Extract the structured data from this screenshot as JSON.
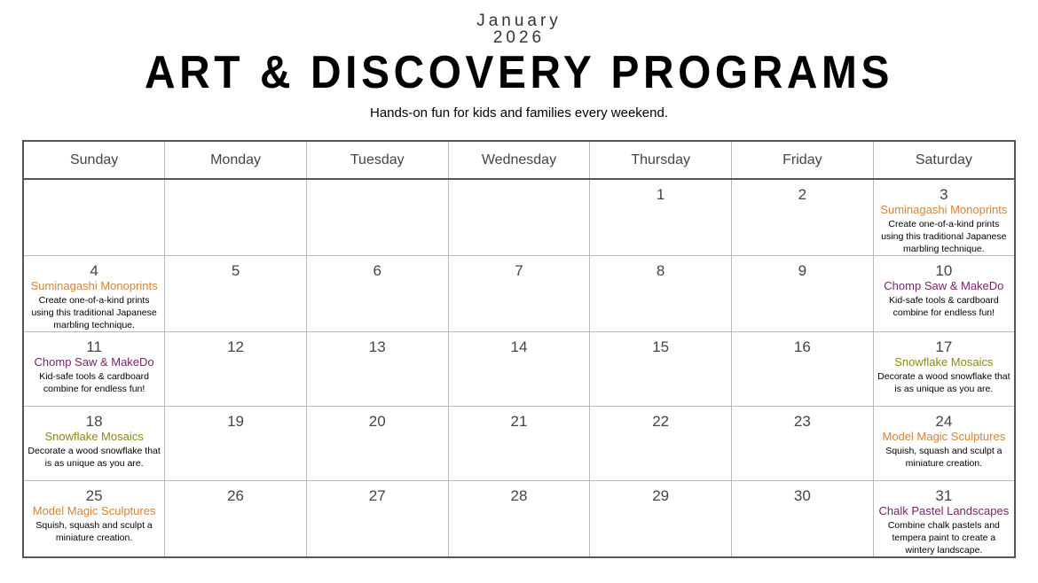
{
  "header": {
    "month": "January",
    "year": "2026",
    "title": "ART & DISCOVERY PROGRAMS",
    "subtitle": "Hands-on fun for kids and families every weekend."
  },
  "colors": {
    "orange": "#d4843a",
    "purple": "#7a1f6e",
    "olive": "#8a8a1a"
  },
  "days": [
    "Sunday",
    "Monday",
    "Tuesday",
    "Wednesday",
    "Thursday",
    "Friday",
    "Saturday"
  ],
  "weeks": [
    [
      {
        "n": ""
      },
      {
        "n": ""
      },
      {
        "n": ""
      },
      {
        "n": ""
      },
      {
        "n": "1"
      },
      {
        "n": "2"
      },
      {
        "n": "3",
        "title": "Suminagashi Monoprints",
        "color": "orange",
        "desc": "Create one-of-a-kind prints using this traditional Japanese marbling technique."
      }
    ],
    [
      {
        "n": "4",
        "title": "Suminagashi Monoprints",
        "color": "orange",
        "desc": "Create one-of-a-kind prints using this traditional Japanese marbling technique."
      },
      {
        "n": "5"
      },
      {
        "n": "6"
      },
      {
        "n": "7"
      },
      {
        "n": "8"
      },
      {
        "n": "9"
      },
      {
        "n": "10",
        "title": "Chomp Saw & MakeDo",
        "color": "purple",
        "desc": "Kid-safe tools & cardboard combine for endless fun!"
      }
    ],
    [
      {
        "n": "11",
        "title": "Chomp Saw & MakeDo",
        "color": "purple",
        "desc": "Kid-safe tools & cardboard combine for endless fun!"
      },
      {
        "n": "12"
      },
      {
        "n": "13"
      },
      {
        "n": "14"
      },
      {
        "n": "15"
      },
      {
        "n": "16"
      },
      {
        "n": "17",
        "title": "Snowflake Mosaics",
        "color": "olive",
        "desc": "Decorate a wood snowflake that is as unique as you are."
      }
    ],
    [
      {
        "n": "18",
        "title": "Snowflake Mosaics",
        "color": "olive",
        "desc": "Decorate a wood snowflake that is as unique as you are."
      },
      {
        "n": "19"
      },
      {
        "n": "20"
      },
      {
        "n": "21"
      },
      {
        "n": "22"
      },
      {
        "n": "23"
      },
      {
        "n": "24",
        "title": "Model Magic Sculptures",
        "color": "orange",
        "desc": "Squish, squash and sculpt a miniature creation."
      }
    ],
    [
      {
        "n": "25",
        "title": "Model Magic Sculptures",
        "color": "orange",
        "desc": "Squish, squash and sculpt a miniature creation."
      },
      {
        "n": "26"
      },
      {
        "n": "27"
      },
      {
        "n": "28"
      },
      {
        "n": "29"
      },
      {
        "n": "30"
      },
      {
        "n": "31",
        "title": "Chalk Pastel Landscapes",
        "color": "purple",
        "desc": "Combine chalk pastels and tempera paint to create a wintery landscape."
      }
    ]
  ]
}
